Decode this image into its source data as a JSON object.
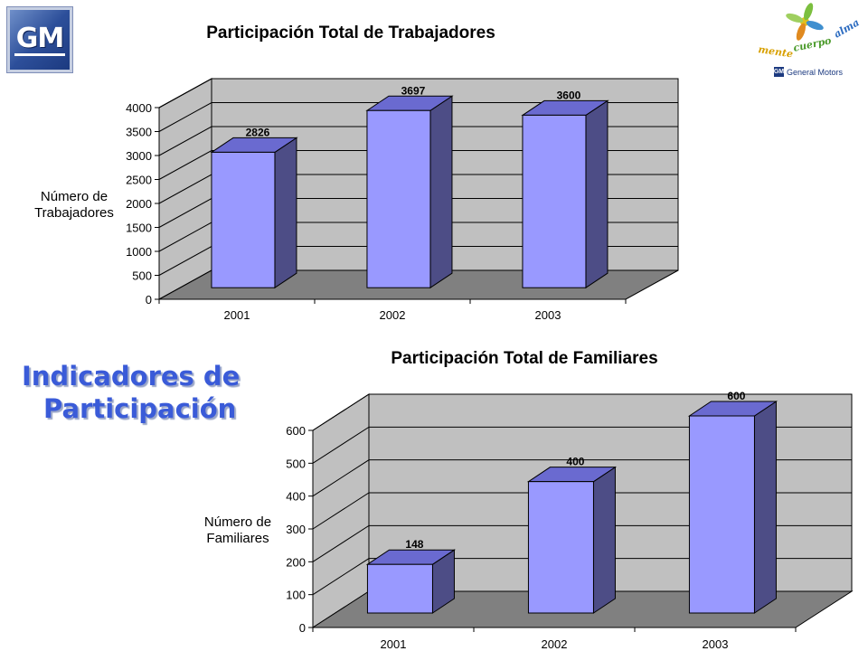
{
  "logos": {
    "gm_mark": "GM",
    "tagline_words": [
      "mente",
      "cuerpo",
      "alma"
    ],
    "brand_text": "General Motors"
  },
  "slide": {
    "title_line1": "Indicadores de",
    "title_line2": "Participación"
  },
  "colors": {
    "bar_front": "#9999ff",
    "bar_top": "#6a6ad0",
    "bar_side": "#4d4d86",
    "back_wall": "#c0c0c0",
    "floor": "#808080",
    "title_accent": "#3a5bd8"
  },
  "chart_data": [
    {
      "type": "bar",
      "title": "Participación Total de Trabajadores",
      "ylabel": "Número de Trabajadores",
      "categories": [
        "2001",
        "2002",
        "2003"
      ],
      "values": [
        2826,
        3697,
        3600
      ],
      "data_labels": [
        "2826",
        "3697",
        "3600"
      ],
      "ylim": [
        0,
        4000
      ],
      "yticks": [
        0,
        500,
        1000,
        1500,
        2000,
        2500,
        3000,
        3500,
        4000
      ],
      "grid": true,
      "legend": "none"
    },
    {
      "type": "bar",
      "title": "Participación Total de Familiares",
      "ylabel": "Número de Familiares",
      "categories": [
        "2001",
        "2002",
        "2003"
      ],
      "values": [
        148,
        400,
        600
      ],
      "data_labels": [
        "148",
        "400",
        "600"
      ],
      "ylim": [
        0,
        600
      ],
      "yticks": [
        0,
        100,
        200,
        300,
        400,
        500,
        600
      ],
      "grid": true,
      "legend": "none"
    }
  ]
}
